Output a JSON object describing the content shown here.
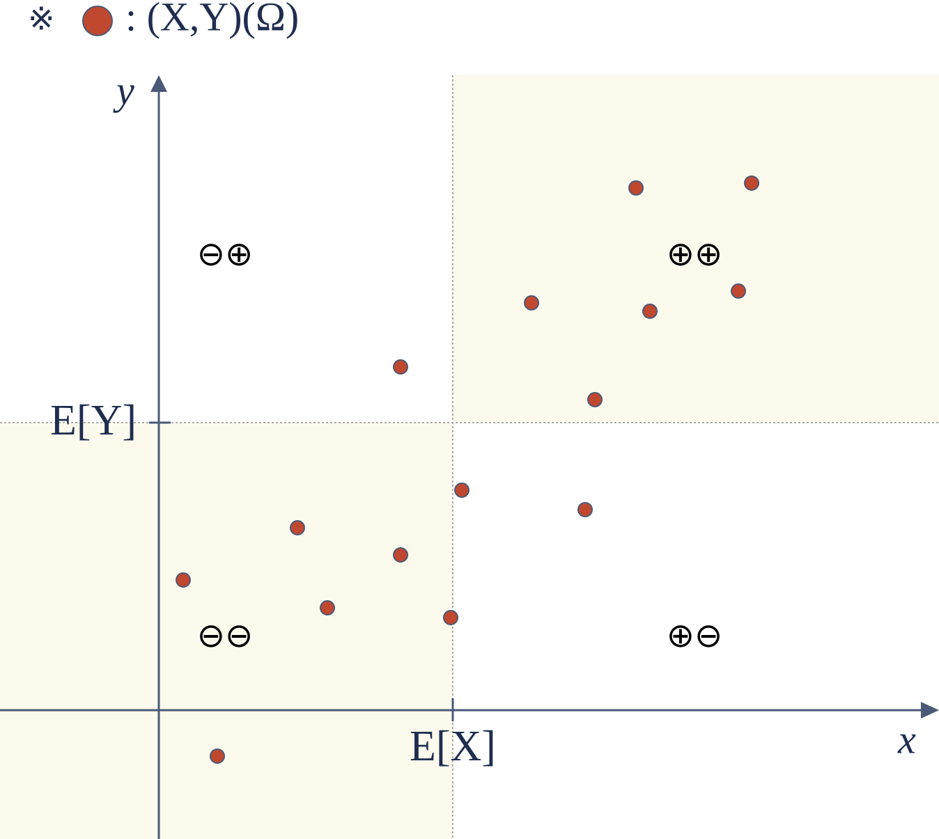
{
  "legend": {
    "symbol": "※",
    "text": ": (X,Y)(Ω)"
  },
  "axes": {
    "x_label": "x",
    "y_label": "y",
    "x_mark": "E[X]",
    "y_mark": "E[Y]"
  },
  "quadrants": {
    "top_left": "⊖⊕",
    "top_right": "⊕⊕",
    "bottom_left": "⊖⊖",
    "bottom_right": "⊕⊖"
  }
}
